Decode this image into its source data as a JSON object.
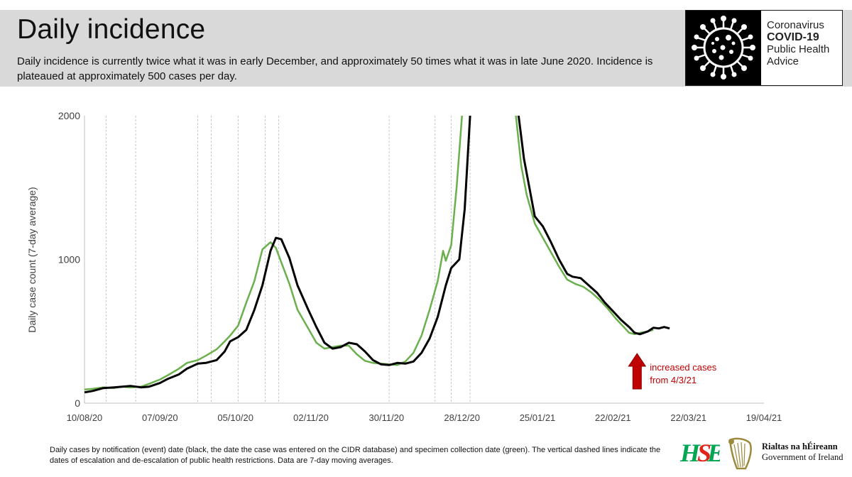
{
  "header": {
    "title": "Daily incidence",
    "subtitle": "Daily incidence is currently twice what it was in early December, and approximately 50 times what it was in late June 2020. Incidence is plateaued at approximately 500 cases per day."
  },
  "badge": {
    "icon": "coronavirus-icon",
    "line1": "Coronavirus",
    "line2": "COVID-19",
    "line3": "Public Health",
    "line4": "Advice"
  },
  "footnote": "Daily cases by notification (event) date (black, the date the case was entered on the CIDR database) and specimen collection date (green). The vertical dashed lines indicate the dates of escalation and de-escalation of public health restrictions. Data are 7-day moving averages.",
  "logos": {
    "hse": "hse-logo",
    "government_irish": "Rialtas na hÉireann",
    "government_english": "Government of Ireland"
  },
  "colors": {
    "notification": "#000000",
    "specimen": "#6ab04c",
    "arrow": "#c00000",
    "header_bg": "#d9d9d9"
  },
  "chart_data": {
    "type": "line",
    "title": "",
    "ylabel": "Daily case count (7-day average)",
    "xlabel": "",
    "ylim": [
      0,
      2000
    ],
    "yticks": [
      "0",
      "1000",
      "2000"
    ],
    "x_ticks": [
      "10/08/20",
      "07/09/20",
      "05/10/20",
      "02/11/20",
      "30/11/20",
      "28/12/20",
      "25/01/21",
      "22/02/21",
      "22/03/21",
      "19/04/21"
    ],
    "x_start": "2020-08-10",
    "x_end": "2021-04-19",
    "grid": false,
    "restriction_dates": [
      "2020-08-18",
      "2020-08-29",
      "2020-09-21",
      "2020-09-26",
      "2020-10-06",
      "2020-10-16",
      "2020-10-21",
      "2020-12-01",
      "2020-12-18",
      "2020-12-24",
      "2020-12-31"
    ],
    "series": [
      {
        "name": "notification",
        "points": [
          [
            "2020-08-10",
            75
          ],
          [
            "2020-08-13",
            85
          ],
          [
            "2020-08-17",
            105
          ],
          [
            "2020-08-21",
            110
          ],
          [
            "2020-08-24",
            115
          ],
          [
            "2020-08-27",
            120
          ],
          [
            "2020-08-31",
            110
          ],
          [
            "2020-09-03",
            115
          ],
          [
            "2020-09-07",
            140
          ],
          [
            "2020-09-10",
            170
          ],
          [
            "2020-09-14",
            200
          ],
          [
            "2020-09-17",
            240
          ],
          [
            "2020-09-21",
            275
          ],
          [
            "2020-09-24",
            280
          ],
          [
            "2020-09-28",
            300
          ],
          [
            "2020-10-01",
            360
          ],
          [
            "2020-10-03",
            430
          ],
          [
            "2020-10-06",
            460
          ],
          [
            "2020-10-09",
            510
          ],
          [
            "2020-10-12",
            650
          ],
          [
            "2020-10-15",
            820
          ],
          [
            "2020-10-18",
            1060
          ],
          [
            "2020-10-20",
            1150
          ],
          [
            "2020-10-22",
            1140
          ],
          [
            "2020-10-25",
            1010
          ],
          [
            "2020-10-28",
            820
          ],
          [
            "2020-11-01",
            650
          ],
          [
            "2020-11-04",
            530
          ],
          [
            "2020-11-07",
            420
          ],
          [
            "2020-11-10",
            380
          ],
          [
            "2020-11-13",
            390
          ],
          [
            "2020-11-16",
            420
          ],
          [
            "2020-11-19",
            410
          ],
          [
            "2020-11-22",
            360
          ],
          [
            "2020-11-25",
            300
          ],
          [
            "2020-11-28",
            270
          ],
          [
            "2020-12-01",
            265
          ],
          [
            "2020-12-04",
            280
          ],
          [
            "2020-12-07",
            275
          ],
          [
            "2020-12-10",
            290
          ],
          [
            "2020-12-13",
            350
          ],
          [
            "2020-12-16",
            450
          ],
          [
            "2020-12-19",
            600
          ],
          [
            "2020-12-22",
            820
          ],
          [
            "2020-12-24",
            940
          ],
          [
            "2020-12-27",
            1000
          ],
          [
            "2020-12-29",
            1350
          ],
          [
            "2020-12-31",
            2000
          ]
        ],
        "points_after_peak": [
          [
            "2021-01-18",
            2000
          ],
          [
            "2021-01-20",
            1700
          ],
          [
            "2021-01-22",
            1500
          ],
          [
            "2021-01-24",
            1300
          ],
          [
            "2021-01-27",
            1230
          ],
          [
            "2021-01-30",
            1120
          ],
          [
            "2021-02-02",
            1000
          ],
          [
            "2021-02-05",
            900
          ],
          [
            "2021-02-07",
            880
          ],
          [
            "2021-02-10",
            870
          ],
          [
            "2021-02-13",
            820
          ],
          [
            "2021-02-16",
            770
          ],
          [
            "2021-02-19",
            700
          ],
          [
            "2021-02-22",
            640
          ],
          [
            "2021-02-25",
            580
          ],
          [
            "2021-02-28",
            530
          ],
          [
            "2021-03-02",
            490
          ],
          [
            "2021-03-04",
            480
          ],
          [
            "2021-03-07",
            500
          ],
          [
            "2021-03-09",
            525
          ],
          [
            "2021-03-11",
            520
          ],
          [
            "2021-03-13",
            530
          ],
          [
            "2021-03-15",
            520
          ]
        ]
      },
      {
        "name": "specimen",
        "points": [
          [
            "2020-08-10",
            95
          ],
          [
            "2020-08-13",
            100
          ],
          [
            "2020-08-17",
            110
          ],
          [
            "2020-08-21",
            105
          ],
          [
            "2020-08-24",
            115
          ],
          [
            "2020-08-27",
            110
          ],
          [
            "2020-08-31",
            115
          ],
          [
            "2020-09-03",
            135
          ],
          [
            "2020-09-07",
            165
          ],
          [
            "2020-09-10",
            195
          ],
          [
            "2020-09-14",
            240
          ],
          [
            "2020-09-17",
            280
          ],
          [
            "2020-09-21",
            300
          ],
          [
            "2020-09-24",
            330
          ],
          [
            "2020-09-28",
            375
          ],
          [
            "2020-10-01",
            430
          ],
          [
            "2020-10-03",
            470
          ],
          [
            "2020-10-06",
            540
          ],
          [
            "2020-10-09",
            700
          ],
          [
            "2020-10-12",
            850
          ],
          [
            "2020-10-15",
            1070
          ],
          [
            "2020-10-18",
            1120
          ],
          [
            "2020-10-20",
            1080
          ],
          [
            "2020-10-22",
            980
          ],
          [
            "2020-10-25",
            830
          ],
          [
            "2020-10-28",
            650
          ],
          [
            "2020-11-01",
            520
          ],
          [
            "2020-11-04",
            420
          ],
          [
            "2020-11-07",
            380
          ],
          [
            "2020-11-10",
            390
          ],
          [
            "2020-11-13",
            400
          ],
          [
            "2020-11-16",
            400
          ],
          [
            "2020-11-19",
            340
          ],
          [
            "2020-11-22",
            295
          ],
          [
            "2020-11-25",
            280
          ],
          [
            "2020-11-28",
            275
          ],
          [
            "2020-12-01",
            270
          ],
          [
            "2020-12-04",
            265
          ],
          [
            "2020-12-07",
            290
          ],
          [
            "2020-12-10",
            350
          ],
          [
            "2020-12-13",
            470
          ],
          [
            "2020-12-16",
            650
          ],
          [
            "2020-12-19",
            850
          ],
          [
            "2020-12-21",
            1060
          ],
          [
            "2020-12-22",
            990
          ],
          [
            "2020-12-24",
            1100
          ],
          [
            "2020-12-26",
            1500
          ],
          [
            "2020-12-28",
            2000
          ]
        ],
        "points_after_peak": [
          [
            "2021-01-17",
            2000
          ],
          [
            "2021-01-19",
            1650
          ],
          [
            "2021-01-21",
            1450
          ],
          [
            "2021-01-24",
            1250
          ],
          [
            "2021-01-27",
            1150
          ],
          [
            "2021-01-30",
            1050
          ],
          [
            "2021-02-02",
            950
          ],
          [
            "2021-02-05",
            860
          ],
          [
            "2021-02-08",
            830
          ],
          [
            "2021-02-11",
            810
          ],
          [
            "2021-02-14",
            770
          ],
          [
            "2021-02-17",
            720
          ],
          [
            "2021-02-20",
            660
          ],
          [
            "2021-02-23",
            590
          ],
          [
            "2021-02-26",
            530
          ],
          [
            "2021-02-28",
            490
          ],
          [
            "2021-03-02",
            480
          ],
          [
            "2021-03-04",
            490
          ],
          [
            "2021-03-07",
            500
          ],
          [
            "2021-03-09",
            510
          ]
        ]
      }
    ],
    "annotation": {
      "text_line1": "increased cases",
      "text_line2": "from 4/3/21",
      "date": "2021-03-04",
      "arrow_icon": "up-arrow-icon"
    }
  }
}
